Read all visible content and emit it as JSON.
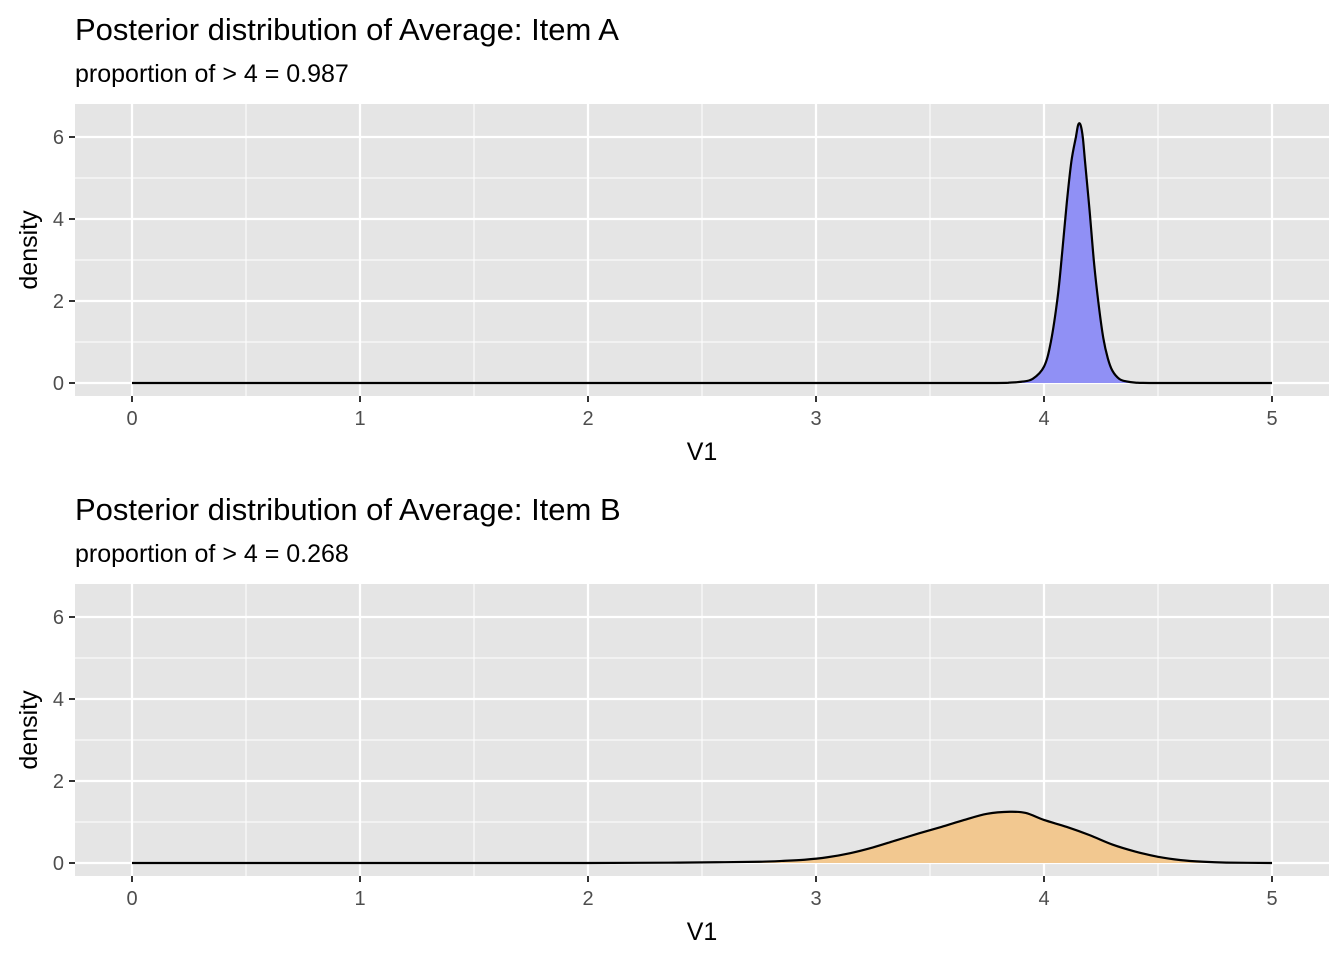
{
  "chart_data": [
    {
      "type": "area",
      "title": "Posterior distribution of Average: Item A",
      "subtitle": "proportion of > 4 = 0.987",
      "xlabel": "V1",
      "ylabel": "density",
      "xlim": [
        0,
        5
      ],
      "ylim": [
        0,
        6.6
      ],
      "x_ticks": [
        "0",
        "1",
        "2",
        "3",
        "4",
        "5"
      ],
      "y_ticks": [
        "0",
        "2",
        "4",
        "6"
      ],
      "grid": true,
      "fill_color": "#9090f5",
      "x": [
        0,
        1,
        2,
        3,
        3.75,
        3.85,
        3.9,
        3.95,
        4.0,
        4.03,
        4.06,
        4.08,
        4.1,
        4.12,
        4.14,
        4.15,
        4.16,
        4.17,
        4.18,
        4.2,
        4.22,
        4.24,
        4.26,
        4.28,
        4.3,
        4.33,
        4.36,
        4.4,
        4.5,
        5
      ],
      "values": [
        0,
        0,
        0,
        0,
        0.0,
        0.01,
        0.03,
        0.1,
        0.4,
        1.0,
        2.1,
        3.2,
        4.4,
        5.4,
        6.0,
        6.3,
        6.3,
        6.0,
        5.4,
        4.2,
        2.9,
        1.9,
        1.1,
        0.6,
        0.3,
        0.1,
        0.04,
        0.01,
        0,
        0
      ]
    },
    {
      "type": "area",
      "title": "Posterior distribution of Average: Item B",
      "subtitle": "proportion of > 4 = 0.268",
      "xlabel": "V1",
      "ylabel": "density",
      "xlim": [
        0,
        5
      ],
      "ylim": [
        0,
        6.6
      ],
      "x_ticks": [
        "0",
        "1",
        "2",
        "3",
        "4",
        "5"
      ],
      "y_ticks": [
        "0",
        "2",
        "4",
        "6"
      ],
      "grid": true,
      "fill_color": "#f2c890",
      "x": [
        0,
        1,
        2,
        2.4,
        2.6,
        2.75,
        2.85,
        2.95,
        3.05,
        3.15,
        3.25,
        3.35,
        3.45,
        3.55,
        3.65,
        3.75,
        3.85,
        3.92,
        4.0,
        4.1,
        4.2,
        4.3,
        4.4,
        4.5,
        4.6,
        4.7,
        4.8,
        5
      ],
      "values": [
        0,
        0,
        0,
        0.01,
        0.02,
        0.03,
        0.05,
        0.08,
        0.14,
        0.24,
        0.38,
        0.55,
        0.72,
        0.88,
        1.05,
        1.2,
        1.25,
        1.22,
        1.05,
        0.88,
        0.68,
        0.45,
        0.28,
        0.15,
        0.07,
        0.03,
        0.01,
        0
      ]
    }
  ]
}
